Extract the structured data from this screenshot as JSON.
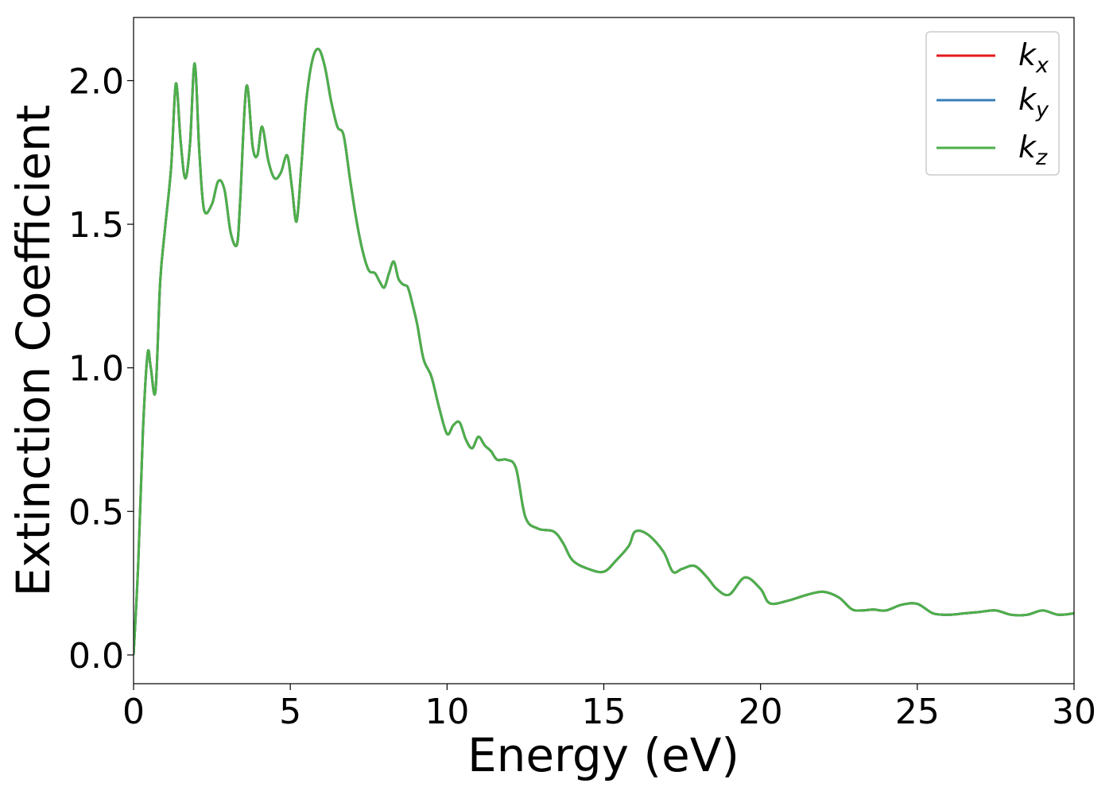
{
  "chart_data": {
    "type": "line",
    "title": "",
    "xlabel": "Energy (eV)",
    "ylabel": "Extinction Coefficient",
    "xlim": [
      0,
      30
    ],
    "ylim": [
      -0.1,
      2.22
    ],
    "xticks": [
      0,
      5,
      10,
      15,
      20,
      25,
      30
    ],
    "xtick_labels": [
      "0",
      "5",
      "10",
      "15",
      "20",
      "25",
      "30"
    ],
    "yticks": [
      0.0,
      0.5,
      1.0,
      1.5,
      2.0
    ],
    "ytick_labels": [
      "0.0",
      "0.5",
      "1.0",
      "1.5",
      "2.0"
    ],
    "grid": false,
    "legend_position": "top-right",
    "x": [
      0,
      0.15,
      0.3,
      0.45,
      0.55,
      0.7,
      0.85,
      1.0,
      1.2,
      1.35,
      1.5,
      1.65,
      1.8,
      1.95,
      2.1,
      2.25,
      2.5,
      2.7,
      2.9,
      3.1,
      3.3,
      3.4,
      3.6,
      3.8,
      3.95,
      4.1,
      4.3,
      4.5,
      4.7,
      4.9,
      5.05,
      5.2,
      5.35,
      5.5,
      5.7,
      5.9,
      6.1,
      6.3,
      6.5,
      6.7,
      6.9,
      7.1,
      7.3,
      7.5,
      7.7,
      7.85,
      8.0,
      8.15,
      8.3,
      8.45,
      8.6,
      8.75,
      8.9,
      9.05,
      9.25,
      9.5,
      9.75,
      10.0,
      10.2,
      10.4,
      10.6,
      10.8,
      11.0,
      11.2,
      11.4,
      11.6,
      11.9,
      12.2,
      12.5,
      12.9,
      13.4,
      13.7,
      14.0,
      14.5,
      15.0,
      15.4,
      15.8,
      16.0,
      16.4,
      16.9,
      17.2,
      17.5,
      17.9,
      18.3,
      18.6,
      19.0,
      19.5,
      20.0,
      20.3,
      20.9,
      21.5,
      22.0,
      22.5,
      22.9,
      23.2,
      23.6,
      24.0,
      24.5,
      25.0,
      25.5,
      26.0,
      26.5,
      27.0,
      27.5,
      28.0,
      28.5,
      29.0,
      29.5,
      30.0
    ],
    "series": [
      {
        "name": "k_x",
        "color": "#e41a1c",
        "y": [
          0.0,
          0.32,
          0.78,
          1.05,
          1.0,
          0.92,
          1.3,
          1.48,
          1.7,
          1.99,
          1.79,
          1.66,
          1.78,
          2.06,
          1.75,
          1.55,
          1.57,
          1.65,
          1.62,
          1.47,
          1.43,
          1.58,
          1.98,
          1.77,
          1.74,
          1.84,
          1.72,
          1.66,
          1.68,
          1.74,
          1.63,
          1.51,
          1.7,
          1.92,
          2.07,
          2.11,
          2.05,
          1.93,
          1.84,
          1.81,
          1.66,
          1.52,
          1.41,
          1.34,
          1.33,
          1.3,
          1.28,
          1.33,
          1.37,
          1.31,
          1.29,
          1.28,
          1.22,
          1.15,
          1.03,
          0.97,
          0.86,
          0.77,
          0.8,
          0.81,
          0.75,
          0.72,
          0.76,
          0.73,
          0.71,
          0.68,
          0.68,
          0.65,
          0.48,
          0.44,
          0.43,
          0.39,
          0.33,
          0.3,
          0.29,
          0.33,
          0.38,
          0.43,
          0.42,
          0.36,
          0.29,
          0.3,
          0.31,
          0.27,
          0.23,
          0.21,
          0.27,
          0.23,
          0.18,
          0.19,
          0.21,
          0.22,
          0.2,
          0.16,
          0.155,
          0.158,
          0.155,
          0.175,
          0.178,
          0.145,
          0.14,
          0.145,
          0.15,
          0.155,
          0.14,
          0.14,
          0.155,
          0.14,
          0.145
        ]
      },
      {
        "name": "k_y",
        "color": "#377eb8",
        "y": [
          0.0,
          0.32,
          0.78,
          1.05,
          1.0,
          0.92,
          1.3,
          1.48,
          1.7,
          1.99,
          1.79,
          1.66,
          1.78,
          2.06,
          1.75,
          1.55,
          1.57,
          1.65,
          1.62,
          1.47,
          1.43,
          1.58,
          1.98,
          1.77,
          1.74,
          1.84,
          1.72,
          1.66,
          1.68,
          1.74,
          1.63,
          1.51,
          1.7,
          1.92,
          2.07,
          2.11,
          2.05,
          1.93,
          1.84,
          1.81,
          1.66,
          1.52,
          1.41,
          1.34,
          1.33,
          1.3,
          1.28,
          1.33,
          1.37,
          1.31,
          1.29,
          1.28,
          1.22,
          1.15,
          1.03,
          0.97,
          0.86,
          0.77,
          0.8,
          0.81,
          0.75,
          0.72,
          0.76,
          0.73,
          0.71,
          0.68,
          0.68,
          0.65,
          0.48,
          0.44,
          0.43,
          0.39,
          0.33,
          0.3,
          0.29,
          0.33,
          0.38,
          0.43,
          0.42,
          0.36,
          0.29,
          0.3,
          0.31,
          0.27,
          0.23,
          0.21,
          0.27,
          0.23,
          0.18,
          0.19,
          0.21,
          0.22,
          0.2,
          0.16,
          0.155,
          0.158,
          0.155,
          0.175,
          0.178,
          0.145,
          0.14,
          0.145,
          0.15,
          0.155,
          0.14,
          0.14,
          0.155,
          0.14,
          0.145
        ]
      },
      {
        "name": "k_z",
        "color": "#4daf4a",
        "y": [
          0.0,
          0.32,
          0.78,
          1.05,
          1.0,
          0.92,
          1.3,
          1.48,
          1.7,
          1.99,
          1.79,
          1.66,
          1.78,
          2.06,
          1.75,
          1.55,
          1.57,
          1.65,
          1.62,
          1.47,
          1.43,
          1.58,
          1.98,
          1.77,
          1.74,
          1.84,
          1.72,
          1.66,
          1.68,
          1.74,
          1.63,
          1.51,
          1.7,
          1.92,
          2.07,
          2.11,
          2.05,
          1.93,
          1.84,
          1.81,
          1.66,
          1.52,
          1.41,
          1.34,
          1.33,
          1.3,
          1.28,
          1.33,
          1.37,
          1.31,
          1.29,
          1.28,
          1.22,
          1.15,
          1.03,
          0.97,
          0.86,
          0.77,
          0.8,
          0.81,
          0.75,
          0.72,
          0.76,
          0.73,
          0.71,
          0.68,
          0.68,
          0.65,
          0.48,
          0.44,
          0.43,
          0.39,
          0.33,
          0.3,
          0.29,
          0.33,
          0.38,
          0.43,
          0.42,
          0.36,
          0.29,
          0.3,
          0.31,
          0.27,
          0.23,
          0.21,
          0.27,
          0.23,
          0.18,
          0.19,
          0.21,
          0.22,
          0.2,
          0.16,
          0.155,
          0.158,
          0.155,
          0.175,
          0.178,
          0.145,
          0.14,
          0.145,
          0.15,
          0.155,
          0.14,
          0.14,
          0.155,
          0.14,
          0.145
        ]
      }
    ],
    "legend": [
      {
        "base": "k",
        "sub": "x",
        "color": "#e41a1c"
      },
      {
        "base": "k",
        "sub": "y",
        "color": "#377eb8"
      },
      {
        "base": "k",
        "sub": "z",
        "color": "#4daf4a"
      }
    ]
  }
}
